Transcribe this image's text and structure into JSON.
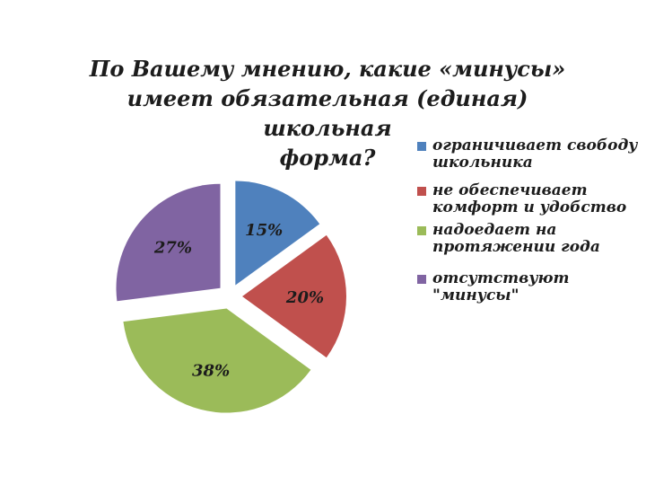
{
  "title_lines": [
    "По Вашему мнению, какие «минусы»",
    "имеет обязательная (единая) школьная",
    "форма?"
  ],
  "chart_data": {
    "type": "pie",
    "title": "По Вашему мнению, какие «минусы» имеет обязательная (единая) школьная форма?",
    "exploded": true,
    "legend_position": "right",
    "slices": [
      {
        "label": "ограничивает свободу школьника",
        "value": 15,
        "display": "15%",
        "color": "#4f81bd"
      },
      {
        "label": "не обеспечивает комфорт и удобство",
        "value": 20,
        "display": "20%",
        "color": "#c0504d"
      },
      {
        "label": "надоедает на протяжении года",
        "value": 38,
        "display": "38%",
        "color": "#9bbb59"
      },
      {
        "label": "отсутствуют \"минусы\"",
        "value": 27,
        "display": "27%",
        "color": "#8064a2"
      }
    ]
  }
}
